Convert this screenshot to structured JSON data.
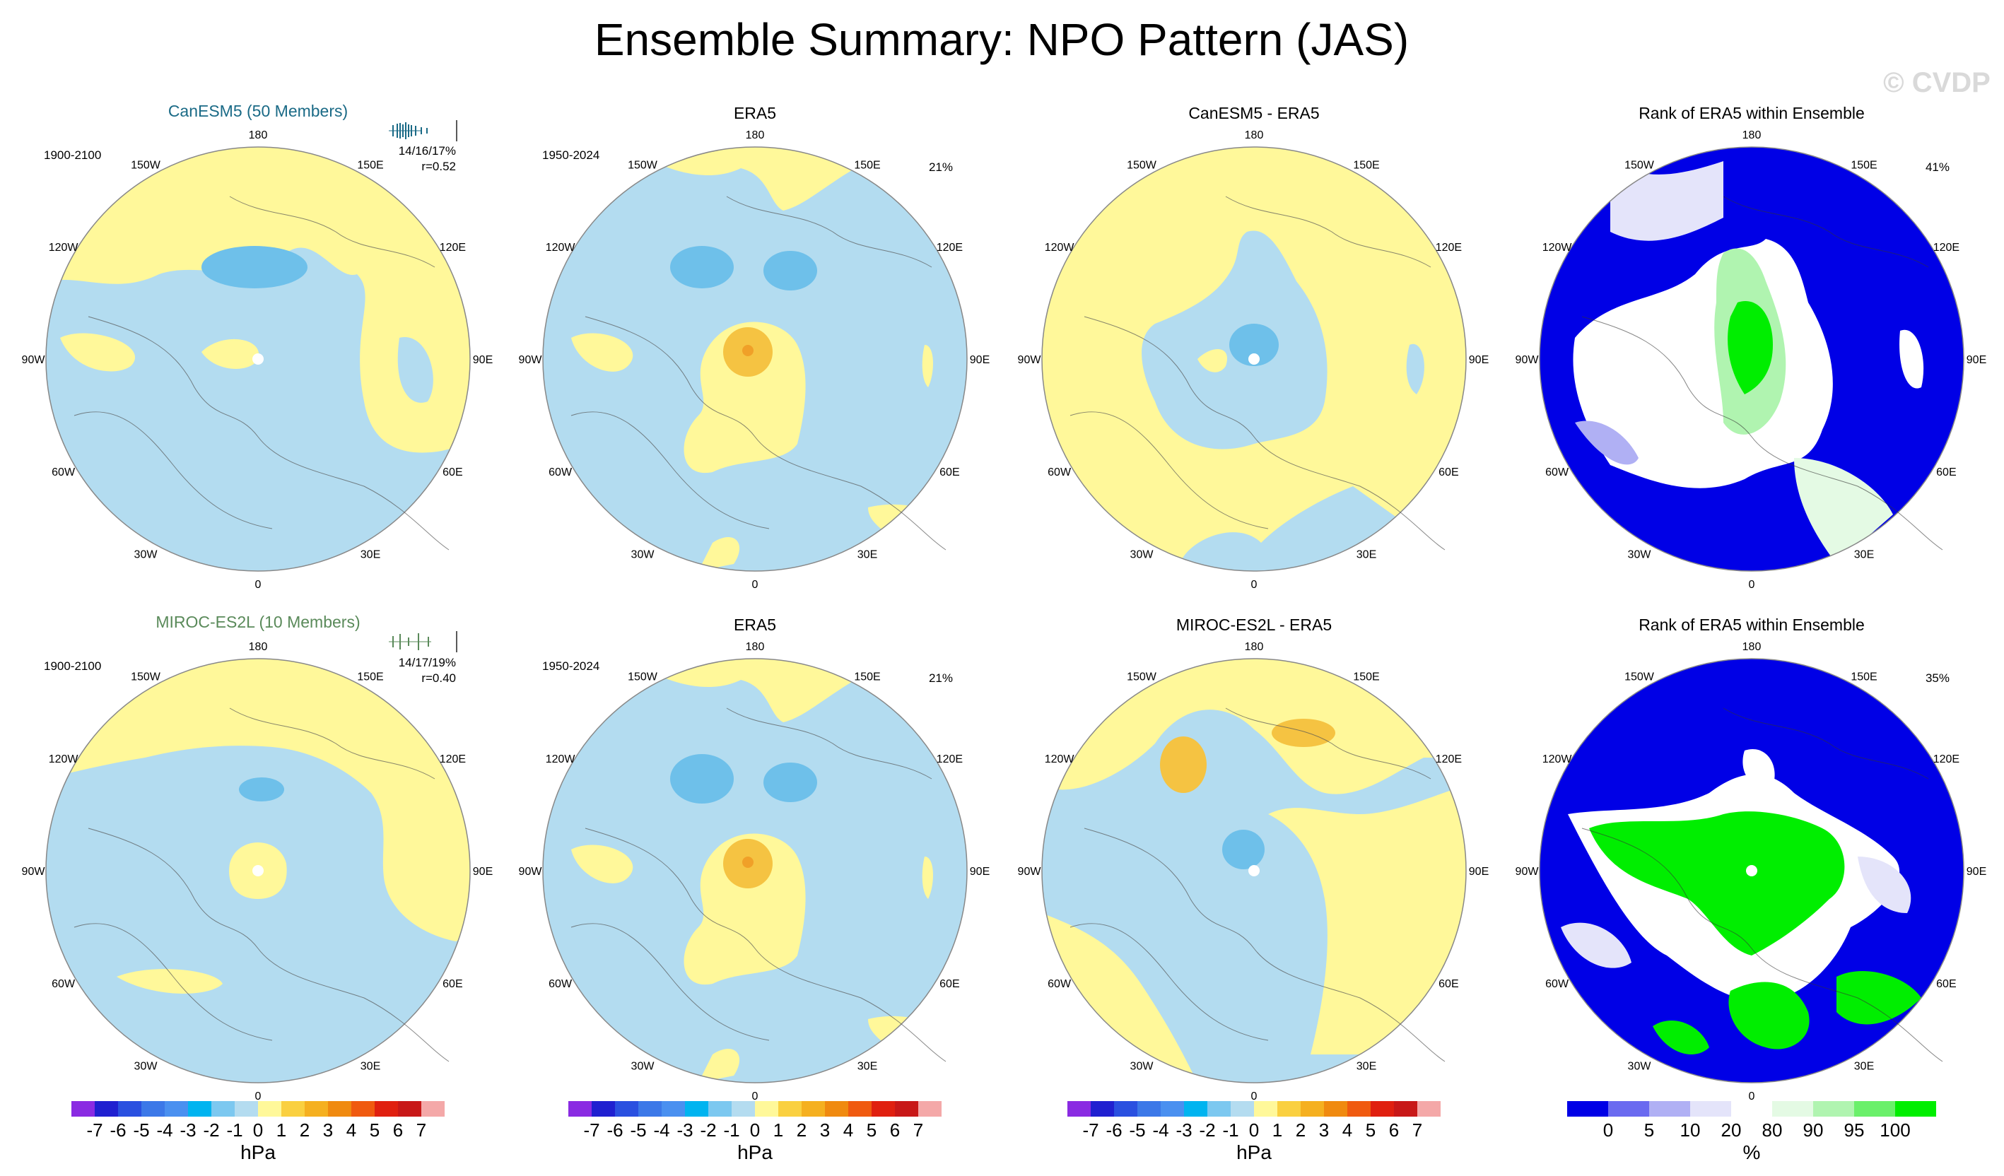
{
  "title": "Ensemble Summary: NPO Pattern (JAS)",
  "watermark": "© CVDP",
  "colors": {
    "blue": "#b3dcf0",
    "yellow": "#fff89a",
    "midblue": "#6ec0ea",
    "orange": "#f5c342",
    "deeporange": "#f0a028",
    "rankblue": "#0000e6",
    "rankgreen": "#00ee00",
    "modelcolor_top": "#1a6a86",
    "modelcolor_bottom": "#5a8a5a"
  },
  "lon_labels": [
    "180",
    "150E",
    "120E",
    "90E",
    "60E",
    "30E",
    "0",
    "30W",
    "60W",
    "90W",
    "120W",
    "150W"
  ],
  "rows": [
    {
      "model_title": "CanESM5 (50 Members)",
      "model_years": "1900-2100",
      "model_stats1": "14/16/17%",
      "model_stats2": "r=0.52",
      "obs_title": "ERA5",
      "obs_years": "1950-2024",
      "obs_pct": "21%",
      "diff_title": "CanESM5 - ERA5",
      "rank_title": "Rank of ERA5 within Ensemble",
      "rank_pct": "41%"
    },
    {
      "model_title": "MIROC-ES2L (10 Members)",
      "model_years": "1900-2100",
      "model_stats1": "14/17/19%",
      "model_stats2": "r=0.40",
      "obs_title": "ERA5",
      "obs_years": "1950-2024",
      "obs_pct": "21%",
      "diff_title": "MIROC-ES2L - ERA5",
      "rank_title": "Rank of ERA5 within Ensemble",
      "rank_pct": "35%"
    }
  ],
  "colorbar_hpa": {
    "labels": [
      "-7",
      "-6",
      "-5",
      "-4",
      "-3",
      "-2",
      "-1",
      "0",
      "1",
      "2",
      "3",
      "4",
      "5",
      "6",
      "7"
    ],
    "colors": [
      "#8a2be2",
      "#2020d0",
      "#2a50e0",
      "#3c78e8",
      "#4a90f0",
      "#00b4f0",
      "#7cc8f0",
      "#b4dcf0",
      "#fff89a",
      "#fad040",
      "#f5b020",
      "#f08a10",
      "#f05a10",
      "#e02010",
      "#c81818",
      "#f4a8a8"
    ],
    "unit": "hPa"
  },
  "colorbar_rank": {
    "labels": [
      "0",
      "5",
      "10",
      "20",
      "80",
      "90",
      "95",
      "100"
    ],
    "colors": [
      "#0000e6",
      "#6a6af0",
      "#b0b0f4",
      "#e4e4fa",
      "#ffffff",
      "#e4fae4",
      "#b0f4b0",
      "#6af06a",
      "#00ee00"
    ],
    "unit": "%"
  }
}
